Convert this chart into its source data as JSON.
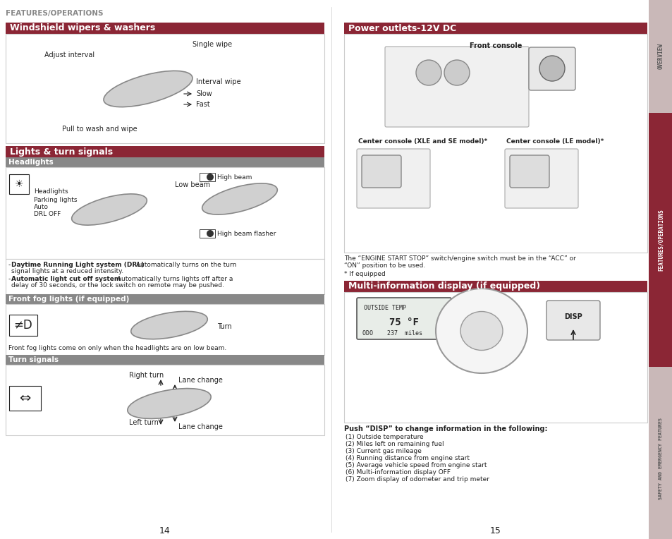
{
  "page_bg": "#ffffff",
  "sidebar_bg": "#c9b8b8",
  "sidebar_active_bg": "#8b2635",
  "sidebar_labels": [
    "OVERVIEW",
    "FEATURES/OPERATIONS",
    "SAFETY AND EMERGENCY FEATURES"
  ],
  "header_text": "FEATURES/OPERATIONS",
  "header_color": "#888888",
  "page_nums": [
    "14",
    "15"
  ],
  "power_labels": [
    "Front console",
    "Center console (XLE and SE model)*",
    "Center console (LE model)*"
  ],
  "power_note1": "The “ENGINE START STOP” switch/engine switch must be in the “ACC” or",
  "power_note2": "“ON” position to be used.",
  "power_note3": "* If equipped",
  "multi_info_items": [
    "(1) Outside temperature",
    "(2) Miles left on remaining fuel",
    "(3) Current gas mileage",
    "(4) Running distance from engine start",
    "(5) Average vehicle speed from engine start",
    "(6) Multi-information display OFF",
    "(7) Zoom display of odometer and trip meter"
  ],
  "multi_info_push_label": "Push “DISP” to change information in the following:",
  "display_lines": [
    "OUTSIDE TEMP",
    "75 °F",
    "ODO    237  miles"
  ],
  "sec_titles": {
    "wipers": "Windshield wipers & washers",
    "lights": "Lights & turn signals",
    "power": "Power outlets-12V DC",
    "multi": "Multi-information display (if equipped)"
  },
  "sub_titles": {
    "headlights": "Headlights",
    "fog": "Front fog lights (if equipped)",
    "turn": "Turn signals"
  },
  "RED": "#8b2635",
  "GRAY_HDR": "#888888",
  "LIGHT_GRAY": "#cccccc",
  "DARK": "#222222",
  "SIDEBAR_BG": "#c9b8b8"
}
